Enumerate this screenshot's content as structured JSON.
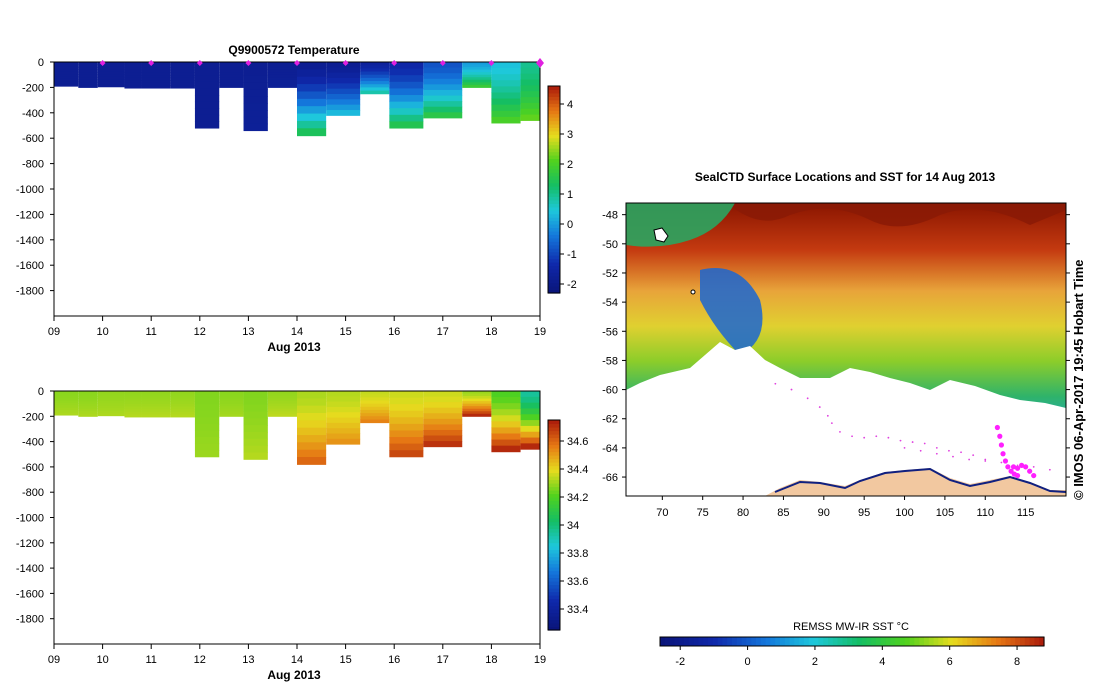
{
  "chart_data": [
    {
      "type": "heatmap",
      "name": "temperature-section",
      "title": "Q9900572  Temperature",
      "xlabel": "Aug 2013",
      "ylabel": "",
      "x_ticks": [
        "09",
        "10",
        "11",
        "12",
        "13",
        "14",
        "15",
        "16",
        "17",
        "18",
        "19"
      ],
      "xlim": [
        9,
        19
      ],
      "y_ticks": [
        "0",
        "-200",
        "-400",
        "-600",
        "-800",
        "-1000",
        "-1200",
        "-1400",
        "-1600",
        "-1800"
      ],
      "ylim": [
        -2000,
        0
      ],
      "colorbar": {
        "min": -2.3,
        "max": 4.6,
        "ticks": [
          "-2",
          "-1",
          "0",
          "1",
          "2",
          "3",
          "4"
        ]
      },
      "profile_markers_x": [
        10,
        11,
        12,
        13,
        14,
        15,
        16,
        17,
        18,
        19
      ],
      "profiles": [
        {
          "x0": 9.0,
          "x1": 9.5,
          "depth": 190,
          "surface": -1.8,
          "deep": -1.8
        },
        {
          "x0": 9.5,
          "x1": 9.9,
          "depth": 200,
          "surface": -1.8,
          "deep": -1.8
        },
        {
          "x0": 9.9,
          "x1": 10.45,
          "depth": 195,
          "surface": -1.8,
          "deep": -1.8
        },
        {
          "x0": 10.45,
          "x1": 10.8,
          "depth": 205,
          "surface": -1.8,
          "deep": -1.8
        },
        {
          "x0": 10.8,
          "x1": 11.4,
          "depth": 205,
          "surface": -1.8,
          "deep": -1.8
        },
        {
          "x0": 11.4,
          "x1": 11.9,
          "depth": 205,
          "surface": -1.8,
          "deep": -1.8
        },
        {
          "x0": 11.9,
          "x1": 12.4,
          "depth": 520,
          "surface": -1.8,
          "deep": -1.8
        },
        {
          "x0": 12.4,
          "x1": 12.9,
          "depth": 200,
          "surface": -1.8,
          "deep": -1.8
        },
        {
          "x0": 12.9,
          "x1": 13.4,
          "depth": 540,
          "surface": -1.8,
          "deep": -1.7
        },
        {
          "x0": 13.4,
          "x1": 14.0,
          "depth": 200,
          "surface": -1.8,
          "deep": -1.7
        },
        {
          "x0": 14.0,
          "x1": 14.6,
          "depth": 580,
          "surface": -1.8,
          "deep": 1.4
        },
        {
          "x0": 14.6,
          "x1": 15.3,
          "depth": 420,
          "surface": -1.8,
          "deep": 0.3
        },
        {
          "x0": 15.3,
          "x1": 15.9,
          "depth": 250,
          "surface": -1.6,
          "deep": 0.8
        },
        {
          "x0": 15.9,
          "x1": 16.6,
          "depth": 520,
          "surface": -1.4,
          "deep": 1.5
        },
        {
          "x0": 16.6,
          "x1": 17.4,
          "depth": 440,
          "surface": -0.8,
          "deep": 1.6
        },
        {
          "x0": 17.4,
          "x1": 18.0,
          "depth": 200,
          "surface": 0.0,
          "deep": 1.8
        },
        {
          "x0": 18.0,
          "x1": 18.6,
          "depth": 480,
          "surface": 0.4,
          "deep": 2.0
        },
        {
          "x0": 18.6,
          "x1": 19.1,
          "depth": 460,
          "surface": 1.0,
          "deep": 2.2
        }
      ]
    },
    {
      "type": "heatmap",
      "name": "salinity-section",
      "title": "",
      "xlabel": "Aug 2013",
      "ylabel": "",
      "x_ticks": [
        "09",
        "10",
        "11",
        "12",
        "13",
        "14",
        "15",
        "16",
        "17",
        "18",
        "19"
      ],
      "xlim": [
        9,
        19
      ],
      "y_ticks": [
        "0",
        "-200",
        "-400",
        "-600",
        "-800",
        "-1000",
        "-1200",
        "-1400",
        "-1600",
        "-1800"
      ],
      "ylim": [
        -2000,
        0
      ],
      "colorbar": {
        "min": 33.25,
        "max": 34.75,
        "ticks": [
          "33.4",
          "33.6",
          "33.8",
          "34",
          "34.2",
          "34.4",
          "34.6"
        ]
      },
      "profiles": [
        {
          "x0": 9.0,
          "x1": 9.5,
          "depth": 190,
          "surface": 34.28,
          "deep": 34.32
        },
        {
          "x0": 9.5,
          "x1": 9.9,
          "depth": 200,
          "surface": 34.28,
          "deep": 34.32
        },
        {
          "x0": 9.9,
          "x1": 10.45,
          "depth": 195,
          "surface": 34.29,
          "deep": 34.32
        },
        {
          "x0": 10.45,
          "x1": 10.8,
          "depth": 205,
          "surface": 34.29,
          "deep": 34.33
        },
        {
          "x0": 10.8,
          "x1": 11.4,
          "depth": 205,
          "surface": 34.29,
          "deep": 34.33
        },
        {
          "x0": 11.4,
          "x1": 11.9,
          "depth": 205,
          "surface": 34.29,
          "deep": 34.33
        },
        {
          "x0": 11.9,
          "x1": 12.4,
          "depth": 520,
          "surface": 34.27,
          "deep": 34.3
        },
        {
          "x0": 12.4,
          "x1": 12.9,
          "depth": 200,
          "surface": 34.28,
          "deep": 34.31
        },
        {
          "x0": 12.9,
          "x1": 13.4,
          "depth": 540,
          "surface": 34.27,
          "deep": 34.33
        },
        {
          "x0": 13.4,
          "x1": 14.0,
          "depth": 200,
          "surface": 34.29,
          "deep": 34.34
        },
        {
          "x0": 14.0,
          "x1": 14.6,
          "depth": 580,
          "surface": 34.32,
          "deep": 34.6
        },
        {
          "x0": 14.6,
          "x1": 15.3,
          "depth": 420,
          "surface": 34.33,
          "deep": 34.52
        },
        {
          "x0": 15.3,
          "x1": 15.9,
          "depth": 250,
          "surface": 34.35,
          "deep": 34.55
        },
        {
          "x0": 15.9,
          "x1": 16.6,
          "depth": 520,
          "surface": 34.36,
          "deep": 34.66
        },
        {
          "x0": 16.6,
          "x1": 17.4,
          "depth": 440,
          "surface": 34.36,
          "deep": 34.7
        },
        {
          "x0": 17.4,
          "x1": 18.0,
          "depth": 200,
          "surface": 34.3,
          "deep": 34.72
        },
        {
          "x0": 18.0,
          "x1": 18.6,
          "depth": 480,
          "surface": 34.2,
          "deep": 34.72
        },
        {
          "x0": 18.6,
          "x1": 19.1,
          "depth": 460,
          "surface": 33.95,
          "deep": 34.72
        }
      ]
    },
    {
      "type": "heatmap",
      "name": "sst-map",
      "title": "SealCTD Surface Locations and SST for 14 Aug 2013",
      "xlabel": "",
      "ylabel": "",
      "x_ticks": [
        "70",
        "75",
        "80",
        "85",
        "90",
        "95",
        "100",
        "105",
        "110",
        "115"
      ],
      "xlim": [
        65.5,
        120
      ],
      "y_ticks": [
        "-48",
        "-50",
        "-52",
        "-54",
        "-56",
        "-58",
        "-60",
        "-62",
        "-64",
        "-66"
      ],
      "ylim": [
        -67.3,
        -47.2
      ],
      "colorbar": {
        "label": "REMSS MW-IR SST °C",
        "min": -2.6,
        "max": 8.8,
        "ticks": [
          "-2",
          "0",
          "2",
          "4",
          "6",
          "8"
        ]
      },
      "side_text": "© IMOS 06-Apr-2017 19:45 Hobart Time",
      "seal_tracks": [
        {
          "lon": [
            111.5,
            111.8,
            112.0,
            112.2,
            112.5,
            112.8,
            113.2,
            113.6,
            114.0
          ],
          "lat": [
            -62.6,
            -63.2,
            -63.8,
            -64.4,
            -64.9,
            -65.3,
            -65.6,
            -65.8,
            -65.9
          ]
        },
        {
          "lon": [
            113.5,
            114.0,
            114.5,
            115.0,
            115.5,
            116.0
          ],
          "lat": [
            -65.3,
            -65.4,
            -65.2,
            -65.3,
            -65.6,
            -65.9
          ]
        }
      ],
      "faint_tracks": [
        {
          "lon": [
            84.0,
            86.0,
            88.0,
            89.5,
            90.5,
            91.0,
            92.0,
            93.5,
            95.0,
            96.5,
            98.0,
            99.5,
            101.0,
            102.5,
            104.0,
            105.5,
            107.0,
            108.5,
            110.0
          ],
          "lat": [
            -59.6,
            -60.0,
            -60.6,
            -61.2,
            -61.8,
            -62.3,
            -62.9,
            -63.2,
            -63.3,
            -63.2,
            -63.3,
            -63.5,
            -63.6,
            -63.7,
            -64.0,
            -64.2,
            -64.3,
            -64.5,
            -64.8
          ]
        },
        {
          "lon": [
            100.0,
            102.0,
            104.0,
            106.0,
            108.0,
            110.0,
            112.0,
            114.0,
            116.0,
            118.0
          ],
          "lat": [
            -64.0,
            -64.2,
            -64.4,
            -64.6,
            -64.8,
            -64.9,
            -65.0,
            -65.2,
            -65.3,
            -65.5
          ]
        }
      ]
    }
  ]
}
